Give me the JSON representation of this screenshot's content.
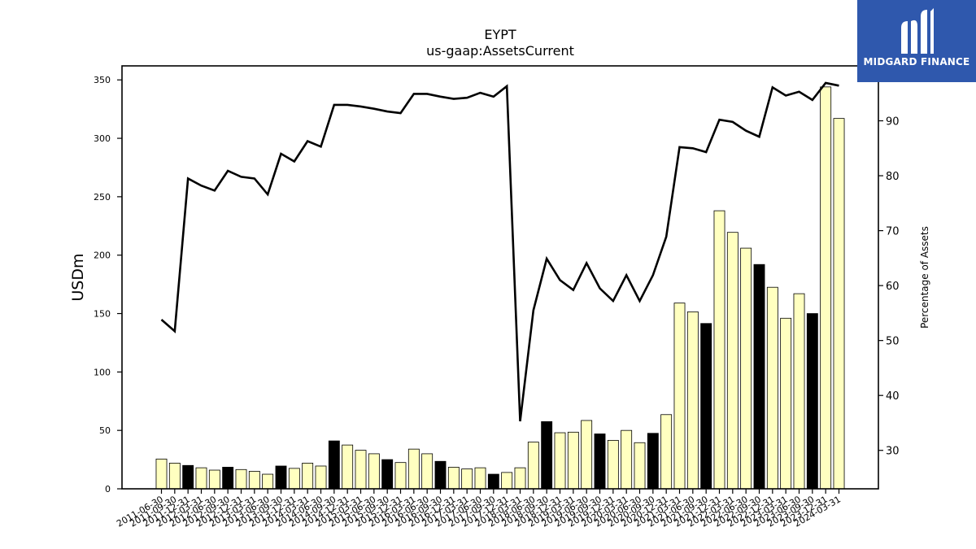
{
  "chart_data": {
    "type": "bar",
    "title": "EYPT",
    "subtitle": "us-gaap:AssetsCurrent",
    "ylabel": "USDm",
    "ylabel_right": "Percentage of Assets",
    "ylim": [
      0,
      362
    ],
    "ylim_right": [
      23,
      100
    ],
    "yticks": [
      0,
      50,
      100,
      150,
      200,
      250,
      300,
      350
    ],
    "yticks_right": [
      30,
      40,
      50,
      60,
      70,
      80,
      90
    ],
    "categories": [
      "2011-06-30",
      "2011-09-30",
      "2011-12-31",
      "2012-03-31",
      "2012-06-30",
      "2012-09-30",
      "2012-12-31",
      "2013-03-31",
      "2013-06-30",
      "2013-09-30",
      "2013-12-31",
      "2014-03-31",
      "2014-06-30",
      "2014-09-30",
      "2014-12-31",
      "2015-03-31",
      "2015-06-30",
      "2015-09-30",
      "2015-12-31",
      "2016-03-31",
      "2016-06-30",
      "2016-09-30",
      "2016-12-31",
      "2017-03-31",
      "2017-06-30",
      "2017-09-30",
      "2017-12-31",
      "2018-03-31",
      "2018-06-30",
      "2018-09-30",
      "2018-12-31",
      "2019-03-31",
      "2019-06-30",
      "2019-09-30",
      "2019-12-31",
      "2020-03-31",
      "2020-06-30",
      "2020-09-30",
      "2020-12-31",
      "2021-03-31",
      "2021-06-30",
      "2021-09-30",
      "2021-12-31",
      "2022-03-31",
      "2022-06-30",
      "2022-09-30",
      "2022-12-31",
      "2023-03-31",
      "2023-06-30",
      "2023-09-30",
      "2023-12-31",
      "2024-03-31"
    ],
    "series": [
      {
        "type": "bar",
        "values": [
          25.5,
          22,
          20,
          18,
          16,
          18.5,
          16.5,
          15,
          12.5,
          19.5,
          17.5,
          22,
          19.5,
          41,
          37.5,
          33,
          30,
          25,
          22.5,
          34,
          30,
          23.5,
          18.5,
          17,
          18,
          12.5,
          14,
          18,
          40,
          57.5,
          48,
          48.5,
          58.5,
          47,
          41.5,
          50,
          39.5,
          47.5,
          63.5,
          159,
          151.5,
          141.5,
          238,
          219.5,
          206,
          192,
          172.5,
          146,
          167,
          150,
          344,
          317
        ],
        "highlight": [
          false,
          false,
          true,
          false,
          false,
          true,
          false,
          false,
          false,
          true,
          false,
          false,
          false,
          true,
          false,
          false,
          false,
          true,
          false,
          false,
          false,
          true,
          false,
          false,
          false,
          true,
          false,
          false,
          false,
          true,
          false,
          false,
          false,
          true,
          false,
          false,
          false,
          true,
          false,
          false,
          false,
          true,
          false,
          false,
          false,
          true,
          false,
          false,
          false,
          true,
          false,
          false
        ]
      },
      {
        "type": "line",
        "axis": "right",
        "values": [
          53.8,
          51.7,
          79.5,
          78.2,
          77.3,
          80.9,
          79.8,
          79.5,
          76.6,
          84,
          82.6,
          86.3,
          85.3,
          92.9,
          92.9,
          92.6,
          92.2,
          91.7,
          91.4,
          94.9,
          94.9,
          94.4,
          94,
          94.2,
          95.1,
          94.4,
          96.3,
          35.3,
          55.5,
          64.9,
          61,
          59.2,
          64.1,
          59.5,
          57.2,
          61.9,
          57.2,
          61.9,
          68.9,
          85.2,
          85,
          84.3,
          90.2,
          89.8,
          88.2,
          87.1,
          96.1,
          94.6,
          95.3,
          93.8,
          96.9,
          96.4
        ]
      }
    ],
    "colors": {
      "bar_fill": "#ffffc0",
      "bar_highlight": "#000000",
      "bar_edge": "#000000",
      "line": "#000000"
    },
    "grid": false
  },
  "logo": {
    "text": "MIDGARD FINANCE",
    "icon": "midgard-logo-icon",
    "background": "#2f58ad"
  }
}
